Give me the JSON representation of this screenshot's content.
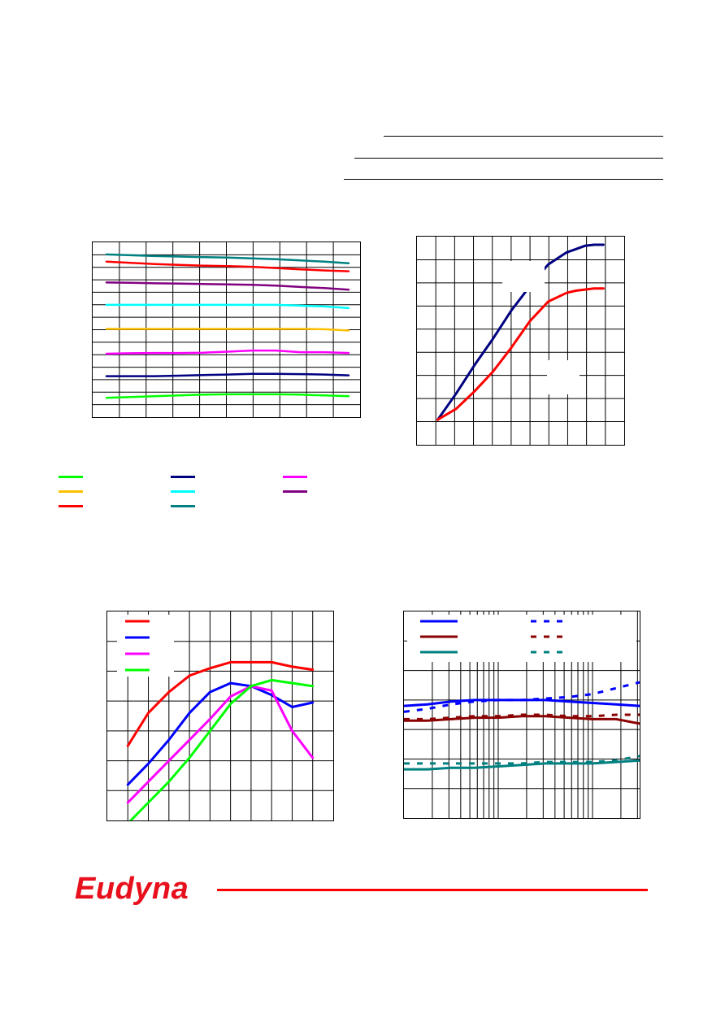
{
  "header": {
    "lines": [
      "",
      "",
      ""
    ]
  },
  "brand": {
    "logo_text": "Eudyna",
    "logo_color": "#e8101c",
    "rule_color": "#ff0000"
  },
  "chart_data": [
    {
      "type": "line",
      "title": "",
      "xlabel": "",
      "ylabel": "",
      "x": [
        0,
        1,
        2,
        3,
        4,
        5,
        6,
        7,
        8,
        9,
        10
      ],
      "xlim": [
        0,
        10
      ],
      "ylim": [
        0,
        10
      ],
      "grid": true,
      "series": [
        {
          "color": "#008080",
          "values": [
            9.65,
            9.6,
            9.55,
            9.52,
            9.48,
            9.45,
            9.4,
            9.35,
            9.28,
            9.2,
            9.1
          ]
        },
        {
          "color": "#ff0000",
          "values": [
            9.2,
            9.12,
            9.05,
            9.0,
            8.95,
            8.92,
            8.88,
            8.8,
            8.72,
            8.65,
            8.6
          ]
        },
        {
          "color": "#800080",
          "values": [
            7.9,
            7.88,
            7.85,
            7.83,
            7.8,
            7.78,
            7.75,
            7.7,
            7.62,
            7.55,
            7.45
          ]
        },
        {
          "color": "#00ffff",
          "values": [
            6.5,
            6.5,
            6.5,
            6.5,
            6.5,
            6.5,
            6.5,
            6.5,
            6.45,
            6.4,
            6.3
          ]
        },
        {
          "color": "#ffc000",
          "values": [
            5.0,
            5.0,
            5.0,
            5.0,
            5.0,
            5.0,
            5.0,
            5.0,
            5.0,
            4.98,
            4.9
          ]
        },
        {
          "color": "#ff00ff",
          "values": [
            3.45,
            3.48,
            3.5,
            3.5,
            3.52,
            3.58,
            3.65,
            3.65,
            3.55,
            3.55,
            3.5
          ]
        },
        {
          "color": "#000080",
          "values": [
            2.05,
            2.05,
            2.05,
            2.08,
            2.12,
            2.15,
            2.2,
            2.2,
            2.18,
            2.15,
            2.1
          ]
        },
        {
          "color": "#00ff00",
          "values": [
            0.7,
            0.75,
            0.8,
            0.85,
            0.9,
            0.92,
            0.92,
            0.92,
            0.9,
            0.85,
            0.8
          ]
        }
      ]
    },
    {
      "type": "line",
      "title": "",
      "xlabel": "",
      "ylabel": "",
      "xlim": [
        0,
        11
      ],
      "ylim": [
        0,
        9
      ],
      "grid": true,
      "series": [
        {
          "color": "#000080",
          "x": [
            1,
            2,
            3,
            4,
            5,
            6,
            7,
            8,
            8.5,
            9,
            9.5,
            10
          ],
          "values": [
            1,
            2.2,
            3.5,
            4.7,
            6.0,
            7.1,
            8.1,
            8.65,
            8.8,
            8.95,
            9.0,
            9.0
          ]
        },
        {
          "color": "#ff0000",
          "x": [
            1,
            2,
            3,
            4,
            5,
            6,
            7,
            8,
            8.5,
            9,
            9.5,
            10
          ],
          "values": [
            1,
            1.5,
            2.3,
            3.2,
            4.3,
            5.5,
            6.4,
            6.8,
            6.9,
            6.95,
            7.0,
            7.0
          ]
        }
      ]
    },
    {
      "type": "line",
      "title": "",
      "xlabel": "",
      "ylabel": "",
      "x": [
        1,
        2,
        3,
        4,
        5,
        6,
        7,
        8,
        9,
        10
      ],
      "xlim": [
        0,
        11
      ],
      "ylim": [
        0,
        7
      ],
      "grid": true,
      "series": [
        {
          "color": "#ff0000",
          "values": [
            2.5,
            3.6,
            4.3,
            4.85,
            5.1,
            5.3,
            5.3,
            5.3,
            5.15,
            5.05
          ]
        },
        {
          "color": "#0000ff",
          "values": [
            1.2,
            1.9,
            2.7,
            3.6,
            4.3,
            4.6,
            4.5,
            4.2,
            3.8,
            3.95
          ]
        },
        {
          "color": "#ff00ff",
          "values": [
            0.6,
            1.3,
            2.0,
            2.7,
            3.4,
            4.15,
            4.5,
            4.35,
            3.0,
            2.1
          ]
        },
        {
          "color": "#00ff00",
          "values": [
            -0.1,
            0.6,
            1.3,
            2.1,
            3.0,
            3.9,
            4.5,
            4.7,
            4.6,
            4.5
          ]
        }
      ]
    },
    {
      "type": "line",
      "title": "",
      "xlabel": "",
      "ylabel": "",
      "x": [
        0,
        1,
        2,
        3,
        4,
        5,
        6,
        7,
        8,
        9,
        10
      ],
      "xlim": [
        0,
        10
      ],
      "ylim": [
        0,
        7
      ],
      "grid": true,
      "series": [
        {
          "color": "#0000ff",
          "style": "solid",
          "values": [
            3.8,
            3.85,
            3.95,
            4.0,
            4.0,
            4.0,
            4.0,
            3.95,
            3.9,
            3.85,
            3.8
          ]
        },
        {
          "color": "#0000ff",
          "style": "dotted",
          "values": [
            3.6,
            3.7,
            3.85,
            3.95,
            4.0,
            4.0,
            4.05,
            4.1,
            4.2,
            4.4,
            4.6
          ]
        },
        {
          "color": "#8b0000",
          "style": "solid",
          "values": [
            3.3,
            3.3,
            3.35,
            3.4,
            3.4,
            3.45,
            3.45,
            3.4,
            3.35,
            3.35,
            3.2
          ]
        },
        {
          "color": "#8b0000",
          "style": "dotted",
          "values": [
            3.35,
            3.35,
            3.4,
            3.45,
            3.45,
            3.5,
            3.5,
            3.45,
            3.45,
            3.5,
            3.5
          ]
        },
        {
          "color": "#008080",
          "style": "solid",
          "values": [
            1.65,
            1.65,
            1.7,
            1.7,
            1.75,
            1.8,
            1.85,
            1.85,
            1.85,
            1.9,
            1.95
          ]
        },
        {
          "color": "#008080",
          "style": "dotted",
          "values": [
            1.85,
            1.85,
            1.85,
            1.85,
            1.85,
            1.85,
            1.9,
            1.9,
            1.9,
            1.95,
            2.1
          ]
        }
      ]
    }
  ],
  "legend_colors": {
    "chart1": [
      "#00ff00",
      "#ffc000",
      "#ff0000",
      "#000080",
      "#00ffff",
      "#008080",
      "#ff00ff",
      "#800080"
    ],
    "chart3": [
      "#ff0000",
      "#0000ff",
      "#ff00ff",
      "#00ff00"
    ],
    "chart4": [
      "#0000ff",
      "#8b0000",
      "#008080"
    ]
  }
}
